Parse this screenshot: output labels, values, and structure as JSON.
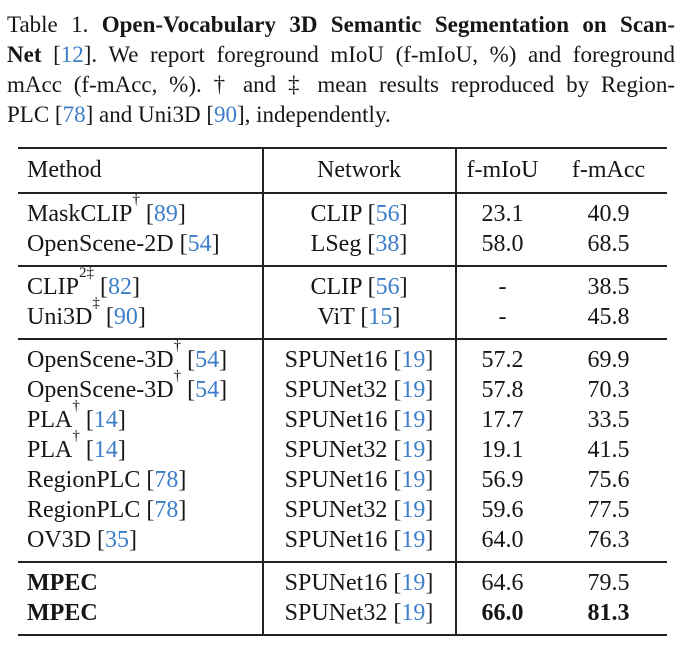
{
  "colors": {
    "text": "#161616",
    "rule": "#222222",
    "citation_blue": "#3d7ec9",
    "background": "#ffffff"
  },
  "caption": {
    "label": "Table 1.",
    "lines": [
      [
        {
          "t": "Table 1. ",
          "s": "n"
        },
        {
          "t": "Open-Vocabulary 3D Semantic Segmentation on Scan-",
          "s": "b"
        }
      ],
      [
        {
          "t": "Net",
          "s": "b"
        },
        {
          "t": " [",
          "s": "n"
        },
        {
          "t": "12",
          "s": "c"
        },
        {
          "t": "]. We report foreground mIoU (f-mIoU, %) and foreground",
          "s": "n"
        }
      ],
      [
        {
          "t": "mAcc (f-mAcc, %). † and ‡ mean results reproduced by Region-",
          "s": "n"
        }
      ],
      [
        {
          "t": "PLC [",
          "s": "n"
        },
        {
          "t": "78",
          "s": "c"
        },
        {
          "t": "] and Uni3D [",
          "s": "n"
        },
        {
          "t": "90",
          "s": "c"
        },
        {
          "t": "], independently.",
          "s": "n"
        }
      ]
    ]
  },
  "table": {
    "headers": [
      "Method",
      "Network",
      "f-mIoU",
      "f-mAcc"
    ],
    "groups": [
      {
        "rows": [
          {
            "method": {
              "name": "MaskCLIP",
              "sup": "†",
              "cite": "89"
            },
            "network": {
              "name": "CLIP",
              "cite": "56"
            },
            "fmiou": "23.1",
            "fmacc": "40.9"
          },
          {
            "method": {
              "name": "OpenScene-2D",
              "cite": "54"
            },
            "network": {
              "name": "LSeg",
              "cite": "38"
            },
            "fmiou": "58.0",
            "fmacc": "68.5"
          }
        ]
      },
      {
        "rows": [
          {
            "method": {
              "name": "CLIP",
              "sup": "2‡",
              "cite": "82"
            },
            "network": {
              "name": "CLIP",
              "cite": "56"
            },
            "fmiou": "-",
            "fmacc": "38.5"
          },
          {
            "method": {
              "name": "Uni3D",
              "sup": "‡",
              "cite": "90"
            },
            "network": {
              "name": "ViT",
              "cite": "15"
            },
            "fmiou": "-",
            "fmacc": "45.8"
          }
        ]
      },
      {
        "rows": [
          {
            "method": {
              "name": "OpenScene-3D",
              "sup": "†",
              "cite": "54"
            },
            "network": {
              "name": "SPUNet16",
              "cite": "19"
            },
            "fmiou": "57.2",
            "fmacc": "69.9"
          },
          {
            "method": {
              "name": "OpenScene-3D",
              "sup": "†",
              "cite": "54"
            },
            "network": {
              "name": "SPUNet32",
              "cite": "19"
            },
            "fmiou": "57.8",
            "fmacc": "70.3"
          },
          {
            "method": {
              "name": "PLA",
              "sup": "†",
              "cite": "14"
            },
            "network": {
              "name": "SPUNet16",
              "cite": "19"
            },
            "fmiou": "17.7",
            "fmacc": "33.5"
          },
          {
            "method": {
              "name": "PLA",
              "sup": "†",
              "cite": "14"
            },
            "network": {
              "name": "SPUNet32",
              "cite": "19"
            },
            "fmiou": "19.1",
            "fmacc": "41.5"
          },
          {
            "method": {
              "name": "RegionPLC",
              "cite": "78"
            },
            "network": {
              "name": "SPUNet16",
              "cite": "19"
            },
            "fmiou": "56.9",
            "fmacc": "75.6"
          },
          {
            "method": {
              "name": "RegionPLC",
              "cite": "78"
            },
            "network": {
              "name": "SPUNet32",
              "cite": "19"
            },
            "fmiou": "59.6",
            "fmacc": "77.5"
          },
          {
            "method": {
              "name": "OV3D",
              "cite": "35"
            },
            "network": {
              "name": "SPUNet16",
              "cite": "19"
            },
            "fmiou": "64.0",
            "fmacc": "76.3"
          }
        ]
      },
      {
        "rows": [
          {
            "method": {
              "name": "MPEC",
              "bold": true
            },
            "network": {
              "name": "SPUNet16",
              "cite": "19"
            },
            "fmiou": "64.6",
            "fmacc": "79.5"
          },
          {
            "method": {
              "name": "MPEC",
              "bold": true
            },
            "network": {
              "name": "SPUNet32",
              "cite": "19"
            },
            "fmiou": "66.0",
            "fmacc": "81.3",
            "bold_values": true
          }
        ]
      }
    ]
  }
}
